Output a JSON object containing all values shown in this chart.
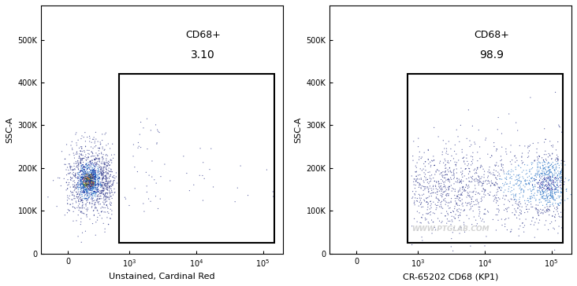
{
  "panel1": {
    "xlabel": "Unstained, Cardinal Red",
    "ylabel": "SSC-A",
    "gate_label": "CD68+",
    "gate_value": "3.10",
    "gate_xmin": 700,
    "gate_xmax": 150000,
    "gate_ymin": 25000,
    "gate_ymax": 420000,
    "n_main": 2000,
    "n_sparse_gate": 60,
    "n_sparse_high": 20
  },
  "panel2": {
    "xlabel": "CR-65202 CD68 (KP1)",
    "ylabel": "SSC-A",
    "gate_label": "CD68+",
    "gate_value": "98.9",
    "gate_xmin": 700,
    "gate_xmax": 150000,
    "gate_ymin": 25000,
    "gate_ymax": 420000,
    "n_main": 1800,
    "watermark": "WWW.PTGLAB.COM"
  },
  "xlim_lo": -300,
  "xlim_hi": 200000,
  "ylim_lo": 0,
  "ylim_hi": 580000,
  "ytick_vals": [
    0,
    100000,
    200000,
    300000,
    400000,
    500000
  ],
  "ytick_labels": [
    "0",
    "100K",
    "200K",
    "300K",
    "400K",
    "500K"
  ],
  "background_color": "#ffffff",
  "gate_linewidth": 1.5,
  "gate_color": "#000000",
  "dot_size": 0.8,
  "dot_alpha": 0.7,
  "fontsize_label": 8,
  "fontsize_tick": 7,
  "fontsize_gate_label": 9,
  "fontsize_gate_value": 10
}
